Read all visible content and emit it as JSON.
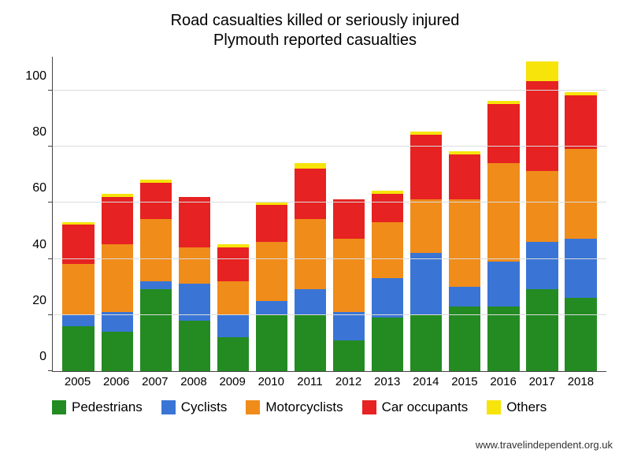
{
  "chart": {
    "type": "stacked-bar",
    "title_line1": "Road casualties killed or seriously injured",
    "title_line2": "Plymouth reported casualties",
    "title_fontsize": 20,
    "background_color": "#ffffff",
    "grid_color": "#dcdcdc",
    "axis_color": "#444444",
    "label_fontsize": 15,
    "ylim": [
      0,
      112
    ],
    "ymax": 112,
    "yticks": [
      0,
      20,
      40,
      60,
      80,
      100
    ],
    "categories": [
      "2005",
      "2006",
      "2007",
      "2008",
      "2009",
      "2010",
      "2011",
      "2012",
      "2013",
      "2014",
      "2015",
      "2016",
      "2017",
      "2018"
    ],
    "series": [
      {
        "name": "Pedestrians",
        "color": "#238b22"
      },
      {
        "name": "Cyclists",
        "color": "#3a75d6"
      },
      {
        "name": "Motorcyclists",
        "color": "#f08c1a"
      },
      {
        "name": "Car occupants",
        "color": "#e62222"
      },
      {
        "name": "Others",
        "color": "#f6e40a"
      }
    ],
    "data": [
      [
        16,
        4,
        18,
        14,
        1
      ],
      [
        14,
        7,
        24,
        17,
        1
      ],
      [
        29,
        3,
        22,
        13,
        1
      ],
      [
        18,
        13,
        13,
        18,
        0
      ],
      [
        12,
        8,
        12,
        12,
        1
      ],
      [
        20,
        5,
        21,
        13,
        1
      ],
      [
        20,
        9,
        25,
        18,
        2
      ],
      [
        11,
        10,
        26,
        14,
        0
      ],
      [
        19,
        14,
        20,
        10,
        1
      ],
      [
        20,
        22,
        19,
        23,
        1
      ],
      [
        23,
        7,
        31,
        16,
        1
      ],
      [
        23,
        16,
        35,
        21,
        1
      ],
      [
        29,
        17,
        25,
        32,
        7
      ],
      [
        26,
        21,
        32,
        19,
        1
      ]
    ],
    "bar_width_pct": 82,
    "legend_fontsize": 17,
    "footer": "www.travelindependent.org.uk",
    "footer_fontsize": 13
  }
}
